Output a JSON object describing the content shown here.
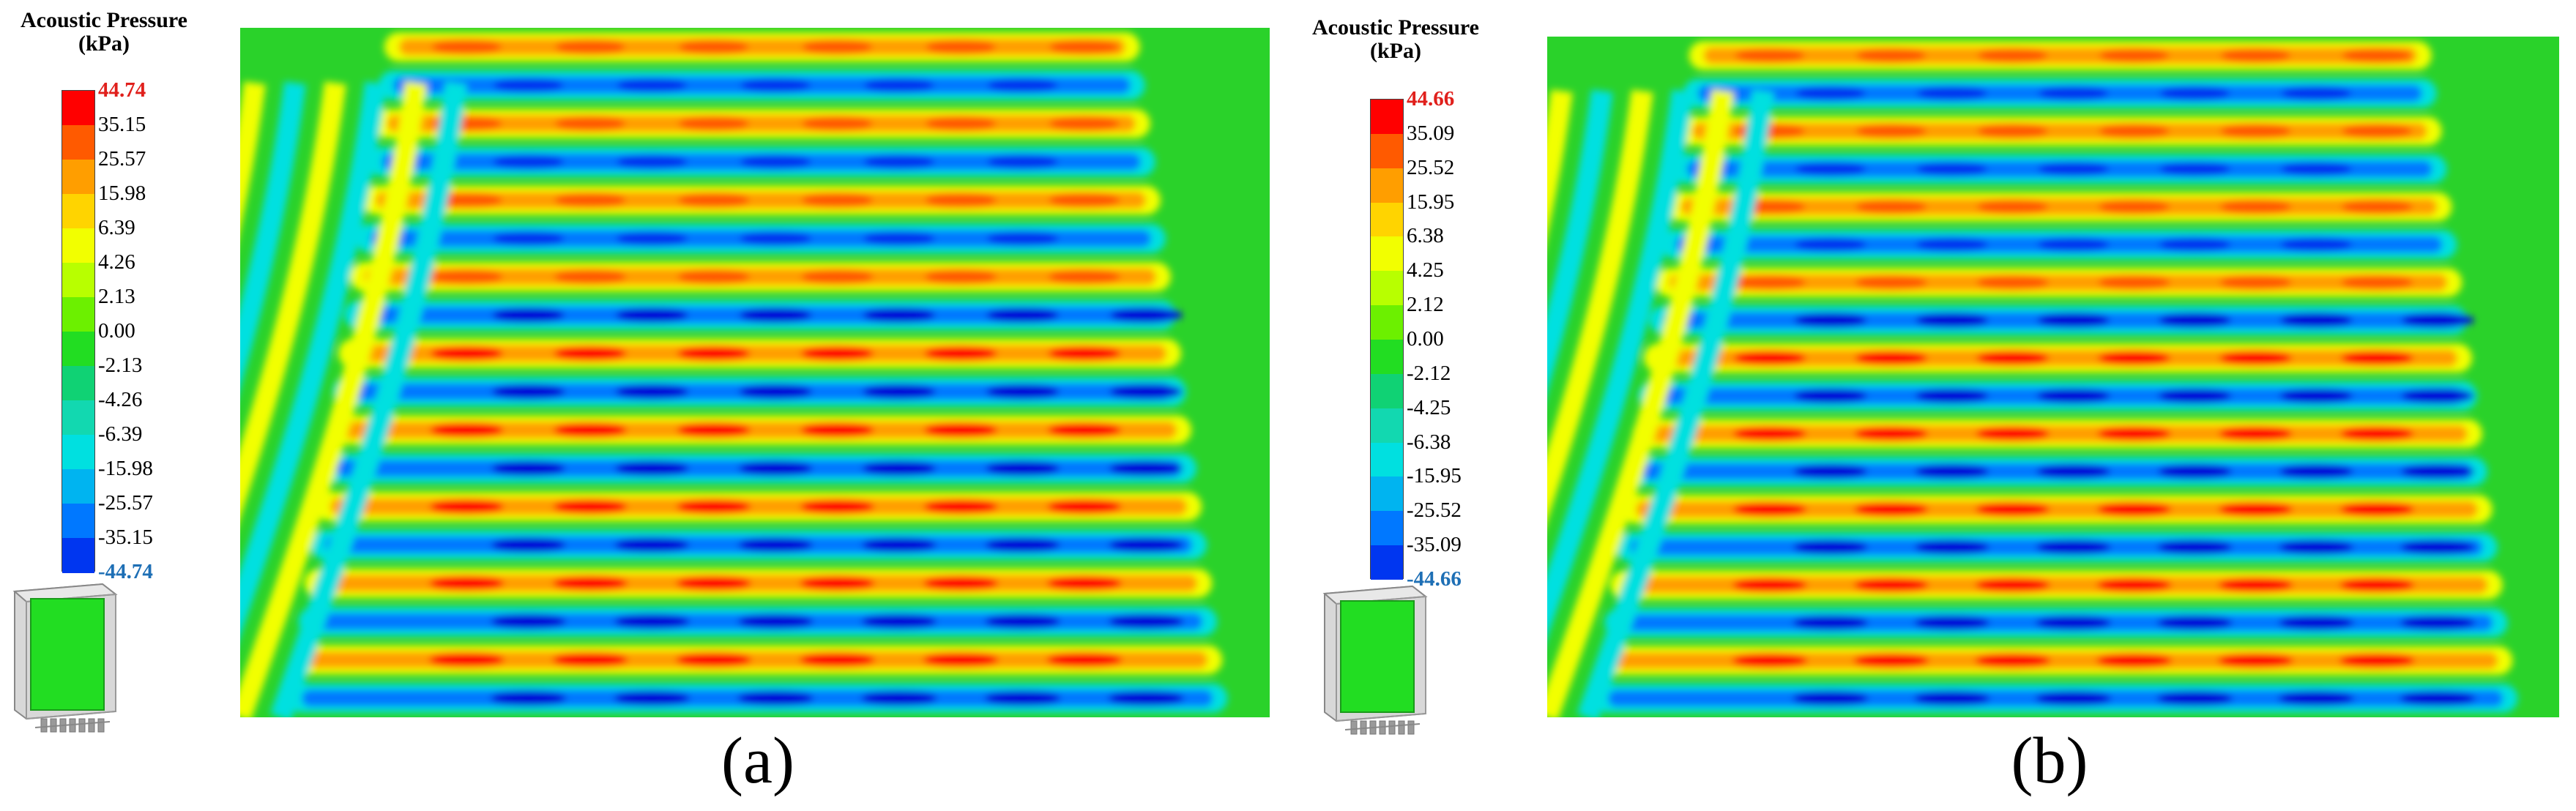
{
  "legend_title": [
    "Acoustic Pressure",
    "(kPa)"
  ],
  "panels": [
    {
      "id": "a",
      "caption": "(a)",
      "max_label": "44.74",
      "min_label": "-44.74",
      "tick_labels": [
        "44.74",
        "35.15",
        "25.57",
        "15.98",
        "6.39",
        "4.26",
        "2.13",
        "0.00",
        "-2.13",
        "-4.26",
        "-6.39",
        "-15.98",
        "-25.57",
        "-35.15",
        "-44.74"
      ]
    },
    {
      "id": "b",
      "caption": "(b)",
      "max_label": "44.66",
      "min_label": "-44.66",
      "tick_labels": [
        "44.66",
        "35.09",
        "25.52",
        "15.95",
        "6.38",
        "4.25",
        "2.12",
        "0.00",
        "-2.12",
        "-4.25",
        "-6.38",
        "-15.95",
        "-25.52",
        "-35.09",
        "-44.66"
      ]
    }
  ],
  "colors": {
    "colormap": [
      "#ff0000",
      "#ff5a00",
      "#ff9e00",
      "#ffd400",
      "#f2ff00",
      "#b8ff00",
      "#6cf000",
      "#22dd22",
      "#10d274",
      "#12d8b0",
      "#00e0e0",
      "#00b4f0",
      "#0078ff",
      "#0036f0",
      "#0000d8"
    ],
    "field_background": "#2ad22a",
    "model_green": "#22dd22"
  }
}
